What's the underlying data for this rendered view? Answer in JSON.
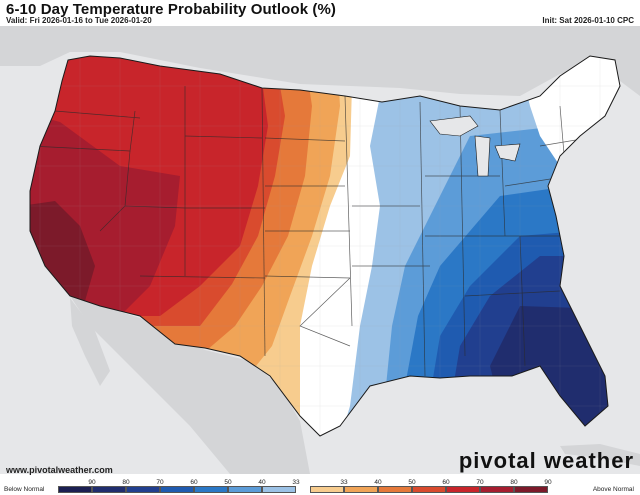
{
  "header": {
    "title": "6-10 Day Temperature Probability Outlook (%)",
    "valid": "Valid: Fri 2026-01-16 to Tue 2026-01-20",
    "init": "Init: Sat 2026-01-10 CPC"
  },
  "footer": {
    "website": "www.pivotalweather.com",
    "brand": "pivotal weather"
  },
  "legend": {
    "left_label": "Below Normal",
    "right_label": "Above Normal",
    "below": [
      {
        "label": "90",
        "color": "#1b1f52"
      },
      {
        "label": "80",
        "color": "#202d6e"
      },
      {
        "label": "70",
        "color": "#213f8f"
      },
      {
        "label": "60",
        "color": "#1f5bb0"
      },
      {
        "label": "50",
        "color": "#2b78c6"
      },
      {
        "label": "40",
        "color": "#5c9cd8"
      },
      {
        "label": "33",
        "color": "#9cc2e6"
      }
    ],
    "above": [
      {
        "label": "33",
        "color": "#f7cc8e"
      },
      {
        "label": "40",
        "color": "#f0a457"
      },
      {
        "label": "50",
        "color": "#e5793a"
      },
      {
        "label": "60",
        "color": "#d94b2e"
      },
      {
        "label": "70",
        "color": "#c8252b"
      },
      {
        "label": "80",
        "color": "#a61d2f"
      },
      {
        "label": "90",
        "color": "#7c1a2a"
      }
    ]
  }
}
